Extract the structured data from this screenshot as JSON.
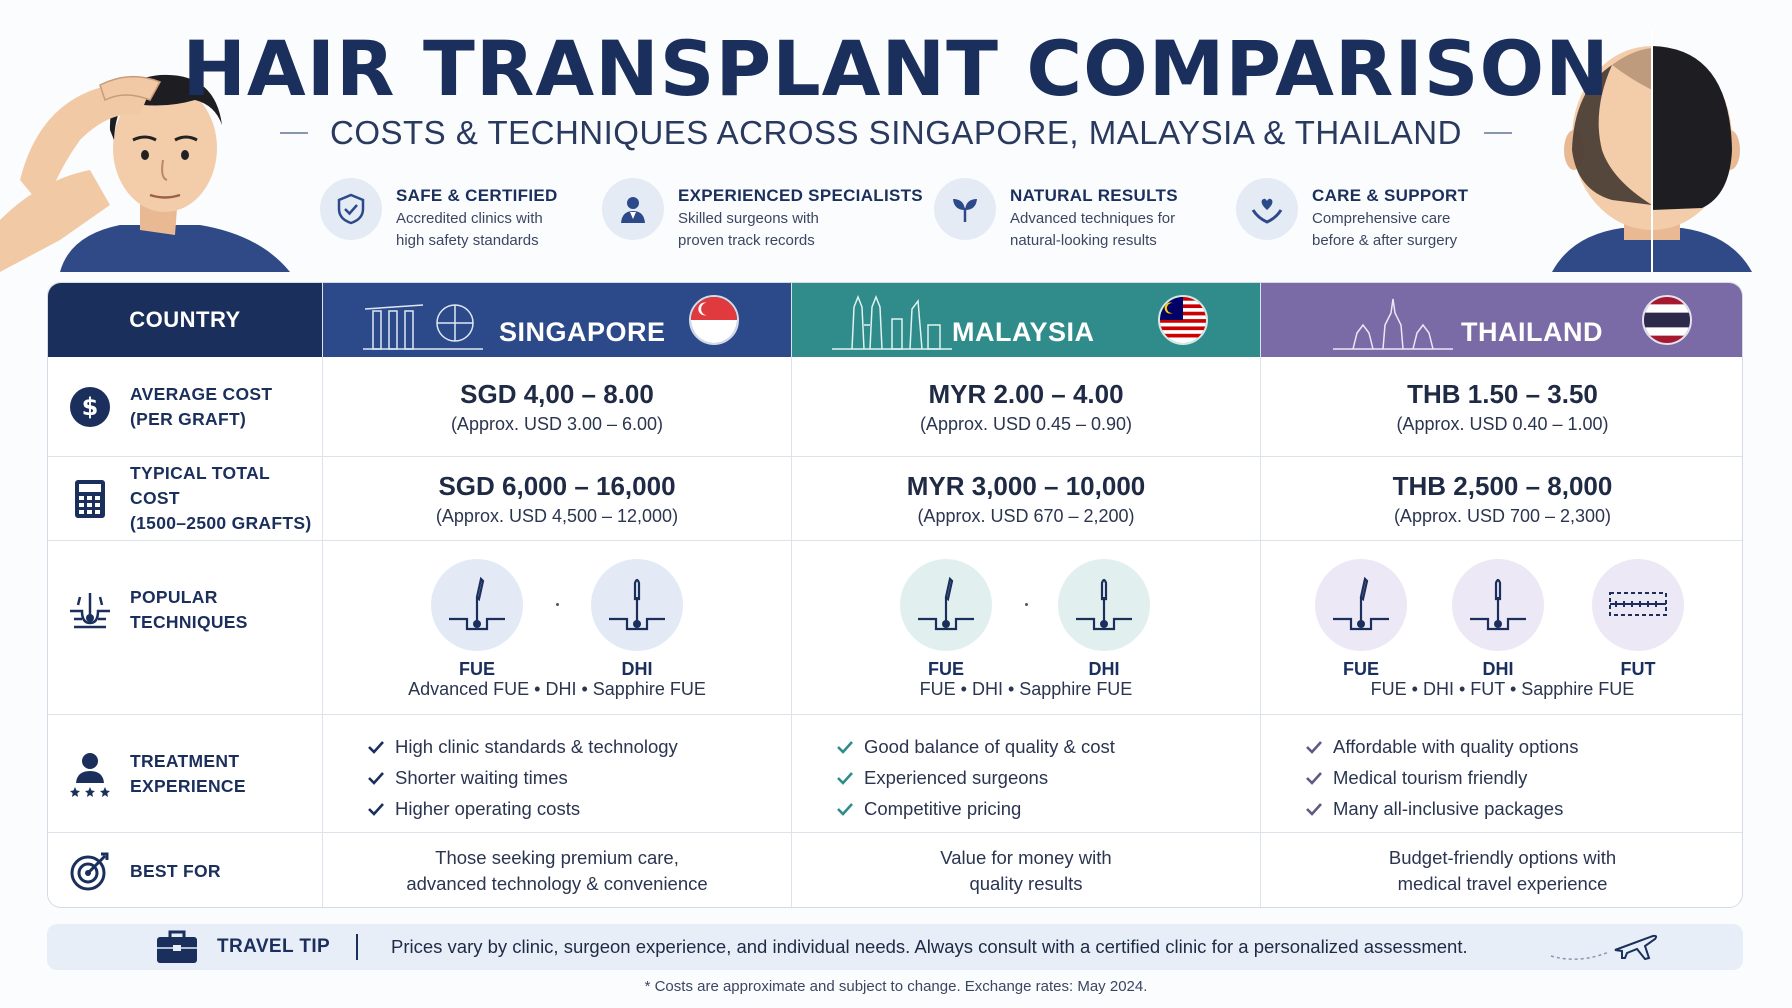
{
  "header": {
    "title": "HAIR TRANSPLANT COMPARISON",
    "subtitle": "COSTS & TECHNIQUES ACROSS SINGAPORE, MALAYSIA & THAILAND"
  },
  "features": [
    {
      "icon": "shield-check-icon",
      "title": "SAFE & CERTIFIED",
      "line1": "Accredited clinics with",
      "line2": "high safety standards"
    },
    {
      "icon": "doctor-icon",
      "title": "EXPERIENCED SPECIALISTS",
      "line1": "Skilled surgeons with",
      "line2": "proven track records"
    },
    {
      "icon": "leaf-icon",
      "title": "NATURAL RESULTS",
      "line1": "Advanced techniques for",
      "line2": "natural-looking results"
    },
    {
      "icon": "heart-hands-icon",
      "title": "CARE & SUPPORT",
      "line1": "Comprehensive care",
      "line2": "before & after surgery"
    }
  ],
  "table": {
    "country_header": "COUNTRY",
    "countries": [
      {
        "name": "SINGAPORE",
        "color": "#2c4a8a"
      },
      {
        "name": "MALAYSIA",
        "color": "#2f8c8a"
      },
      {
        "name": "THAILAND",
        "color": "#7a6aa6"
      }
    ],
    "rows": {
      "avg_cost": {
        "label1": "AVERAGE COST",
        "label2": "(PER GRAFT)",
        "values": [
          {
            "main": "SGD 4,00 – 8.00",
            "sub": "(Approx. USD 3.00 – 6.00)"
          },
          {
            "main": "MYR 2.00 – 4.00",
            "sub": "(Approx. USD 0.45 – 0.90)"
          },
          {
            "main": "THB 1.50 – 3.50",
            "sub": "(Approx. USD 0.40 – 1.00)"
          }
        ]
      },
      "total_cost": {
        "label1": "TYPICAL TOTAL COST",
        "label2": "(1500–2500 GRAFTS)",
        "values": [
          {
            "main": "SGD 6,000 – 16,000",
            "sub": "(Approx. USD 4,500 – 12,000)"
          },
          {
            "main": "MYR 3,000 – 10,000",
            "sub": "(Approx. USD 670 – 2,200)"
          },
          {
            "main": "THB 2,500 – 8,000",
            "sub": "(Approx. USD 700 – 2,300)"
          }
        ]
      },
      "techniques": {
        "label1": "POPULAR",
        "label2": "TECHNIQUES",
        "values": [
          {
            "items": [
              "FUE",
              "DHI"
            ],
            "list": "Advanced FUE • DHI • Sapphire FUE"
          },
          {
            "items": [
              "FUE",
              "DHI"
            ],
            "list": "FUE • DHI • Sapphire FUE"
          },
          {
            "items": [
              "FUE",
              "DHI",
              "FUT"
            ],
            "list": "FUE • DHI • FUT • Sapphire FUE"
          }
        ]
      },
      "experience": {
        "label1": "TREATMENT",
        "label2": "EXPERIENCE",
        "values": [
          [
            "High clinic standards & technology",
            "Shorter waiting times",
            "Higher operating costs"
          ],
          [
            "Good balance of quality & cost",
            "Experienced surgeons",
            "Competitive pricing"
          ],
          [
            "Affordable with quality options",
            "Medical tourism friendly",
            "Many all-inclusive packages"
          ]
        ]
      },
      "best_for": {
        "label": "BEST FOR",
        "values": [
          [
            "Those seeking premium care,",
            "advanced technology & convenience"
          ],
          [
            "Value for money with",
            "quality results"
          ],
          [
            "Budget-friendly options with",
            "medical travel experience"
          ]
        ]
      }
    }
  },
  "tip": {
    "label": "TRAVEL TIP",
    "text": "Prices vary by clinic, surgeon experience, and individual needs. Always consult with a certified clinic for a personalized assessment."
  },
  "footnote": "* Costs are approximate and subject to change. Exchange rates: May 2024."
}
